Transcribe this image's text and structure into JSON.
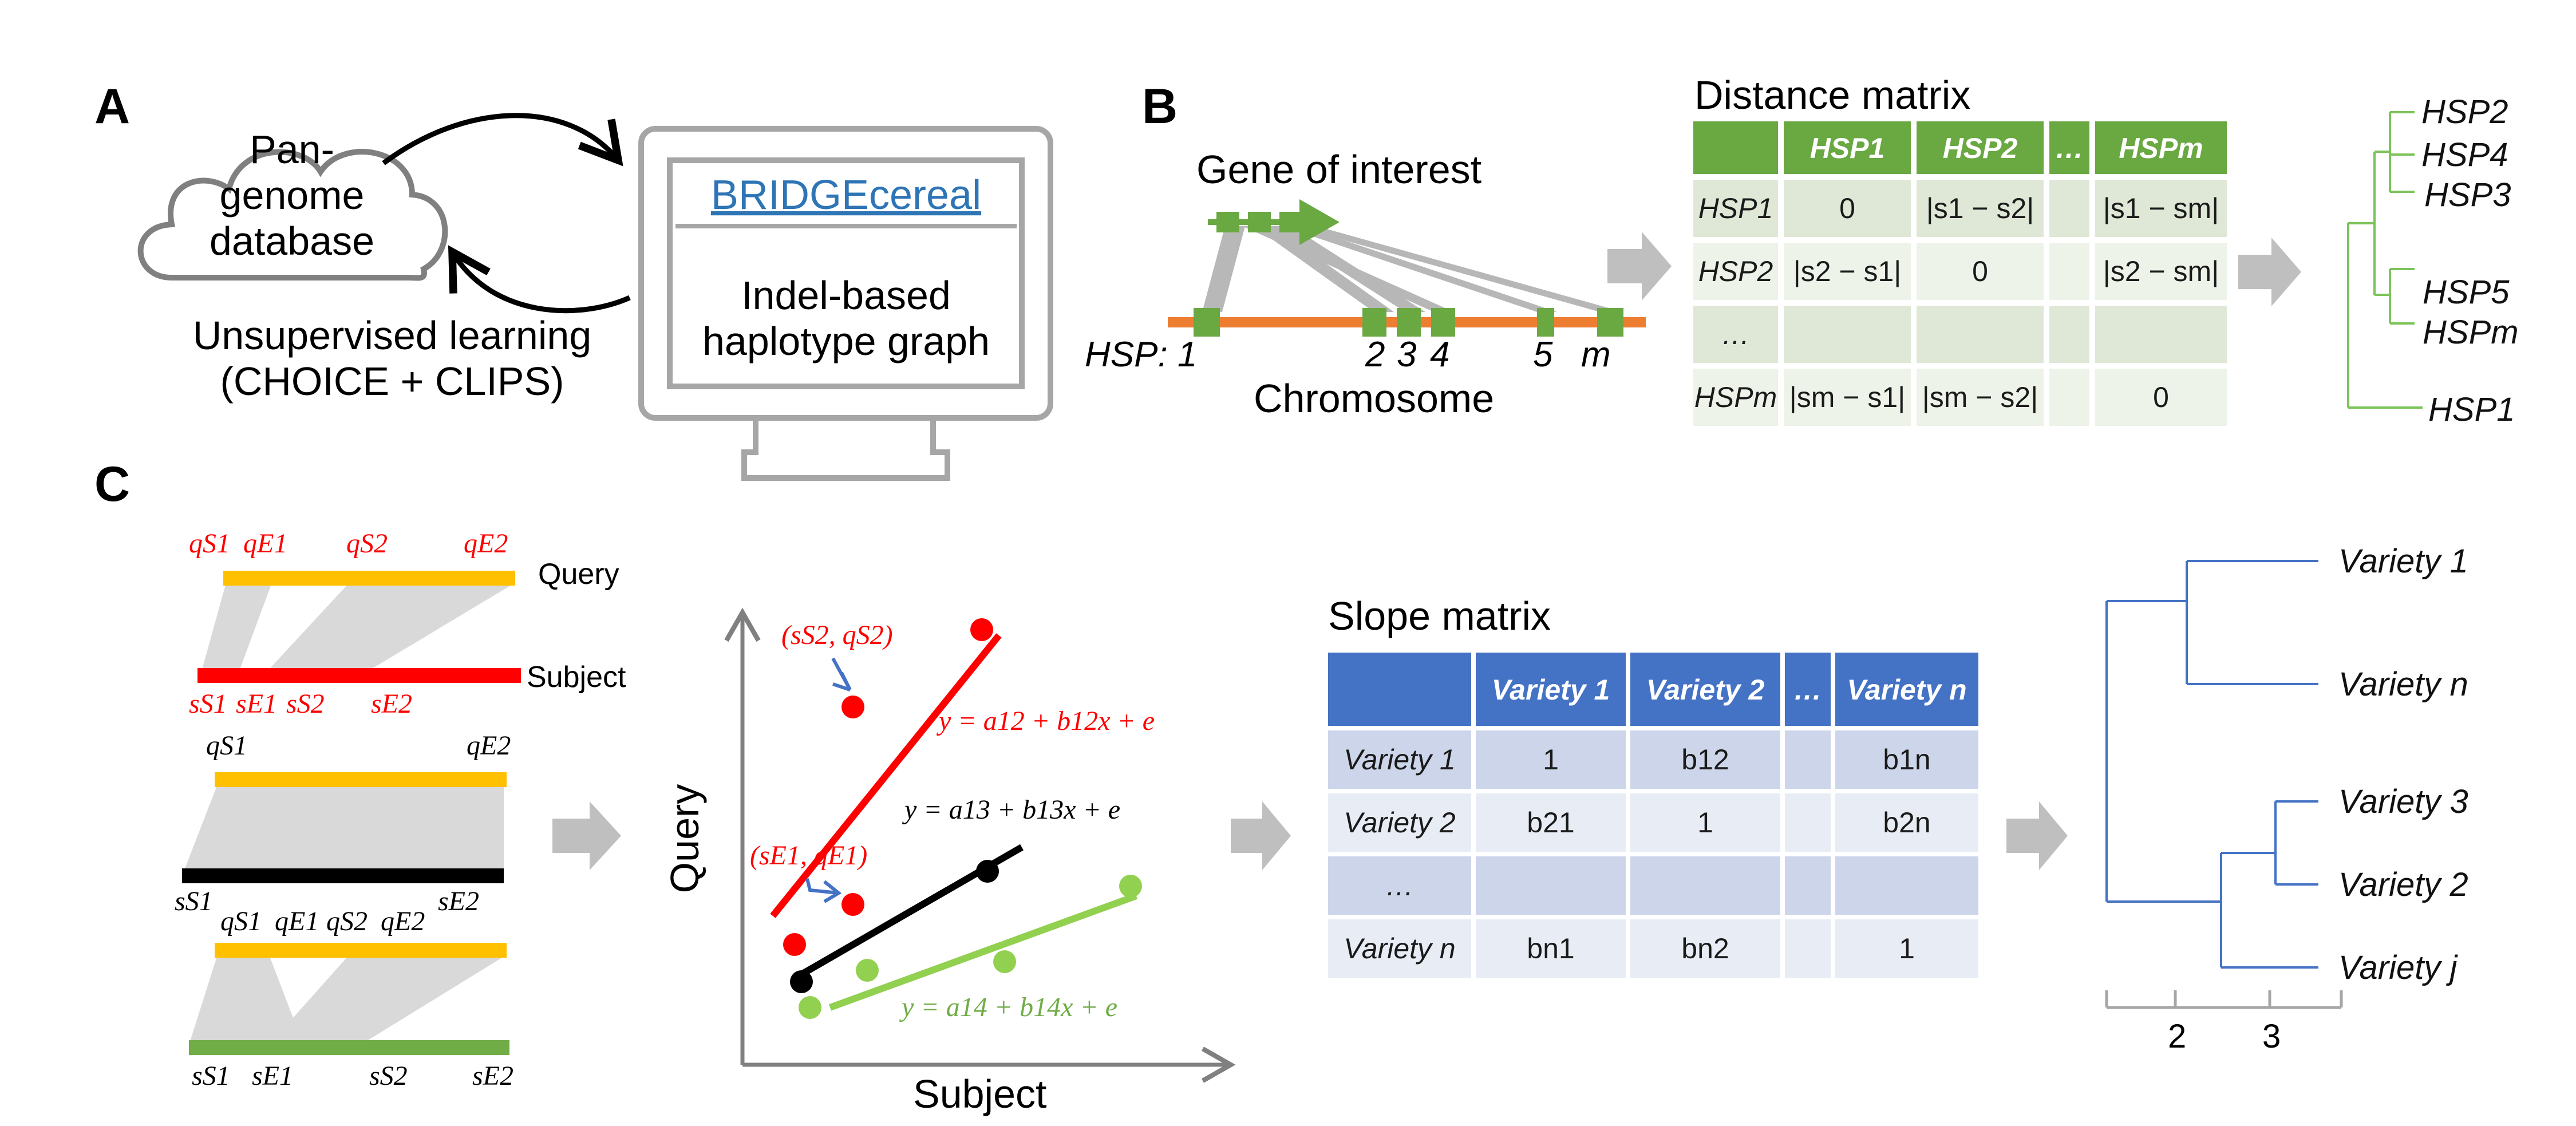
{
  "panel_a": {
    "label": "A",
    "cloud_text": [
      "Pan-",
      "genome",
      "database"
    ],
    "learning_text": [
      "Unsupervised learning",
      "(CHOICE + CLIPS)"
    ],
    "app_title": "BRIDGEcereal",
    "screen_text": [
      "Indel-based",
      "haplotype graph"
    ]
  },
  "panel_b": {
    "label": "B",
    "gene_label": "Gene of interest",
    "hsp_prefix": "HSP: 1",
    "hsp_numbers": [
      "2",
      "3",
      "4",
      "5",
      "m"
    ],
    "chromosome_label": "Chromosome",
    "matrix_title": "Distance matrix",
    "matrix_headers": [
      "",
      "HSP1",
      "HSP2",
      "…",
      "HSPm"
    ],
    "matrix_rows": [
      [
        "HSP1",
        "0",
        "|s1 − s2|",
        "",
        "|s1 − sm|"
      ],
      [
        "HSP2",
        "|s2 − s1|",
        "0",
        "",
        "|s2 − sm|"
      ],
      [
        "…",
        "",
        "",
        "",
        ""
      ],
      [
        "HSPm",
        "|sm − s1|",
        "|sm − s2|",
        "",
        "0"
      ]
    ],
    "tree_leaves": [
      "HSP2",
      "HSP4",
      "HSP3",
      "HSP5",
      "HSPm",
      "HSP1"
    ],
    "colors": {
      "green": "#6aa842",
      "orange": "#ed7d31",
      "leaf_green": "#7cc35a"
    }
  },
  "panel_c": {
    "label": "C",
    "alignment1": {
      "top_labels": [
        "qS1",
        "qE1",
        "qS2",
        "qE2"
      ],
      "query_label": "Query",
      "subject_label": "Subject",
      "bottom_labels": [
        "sS1",
        "sE1",
        "sS2",
        "sE2"
      ]
    },
    "alignment2": {
      "top_labels": [
        "qS1",
        "qE2"
      ],
      "bottom_labels": [
        "sS1",
        "sE2"
      ]
    },
    "alignment3": {
      "top_labels": [
        "qS1",
        "qE1",
        "qS2",
        "qE2"
      ],
      "bottom_labels": [
        "sS1",
        "sE1",
        "sS2",
        "sE2"
      ]
    },
    "plot": {
      "x_label": "Subject",
      "y_label": "Query",
      "annotations": [
        "(sS2, qS2)",
        "(sE1, qE1)"
      ],
      "equations": [
        "y = a12 + b12x + e",
        "y = a13 + b13x + e",
        "y = a14 + b14x + e"
      ]
    },
    "slope_title": "Slope matrix",
    "slope_headers": [
      "",
      "Variety 1",
      "Variety 2",
      "…",
      "Variety n"
    ],
    "slope_rows": [
      [
        "Variety 1",
        "1",
        "b12",
        "",
        "b1n"
      ],
      [
        "Variety 2",
        "b21",
        "1",
        "",
        "b2n"
      ],
      [
        "…",
        "",
        "",
        "",
        ""
      ],
      [
        "Variety n",
        "bn1",
        "bn2",
        "",
        "1"
      ]
    ],
    "dendro_leaves": [
      "Variety 1",
      "Variety n",
      "Variety 3",
      "Variety 2",
      "Variety j"
    ],
    "scale_ticks": [
      "2",
      "3"
    ],
    "colors": {
      "red": "#ff0000",
      "gold": "#ffc000",
      "blue": "#4472c4",
      "light_green": "#92d050",
      "dark_green": "#70ad47"
    }
  }
}
